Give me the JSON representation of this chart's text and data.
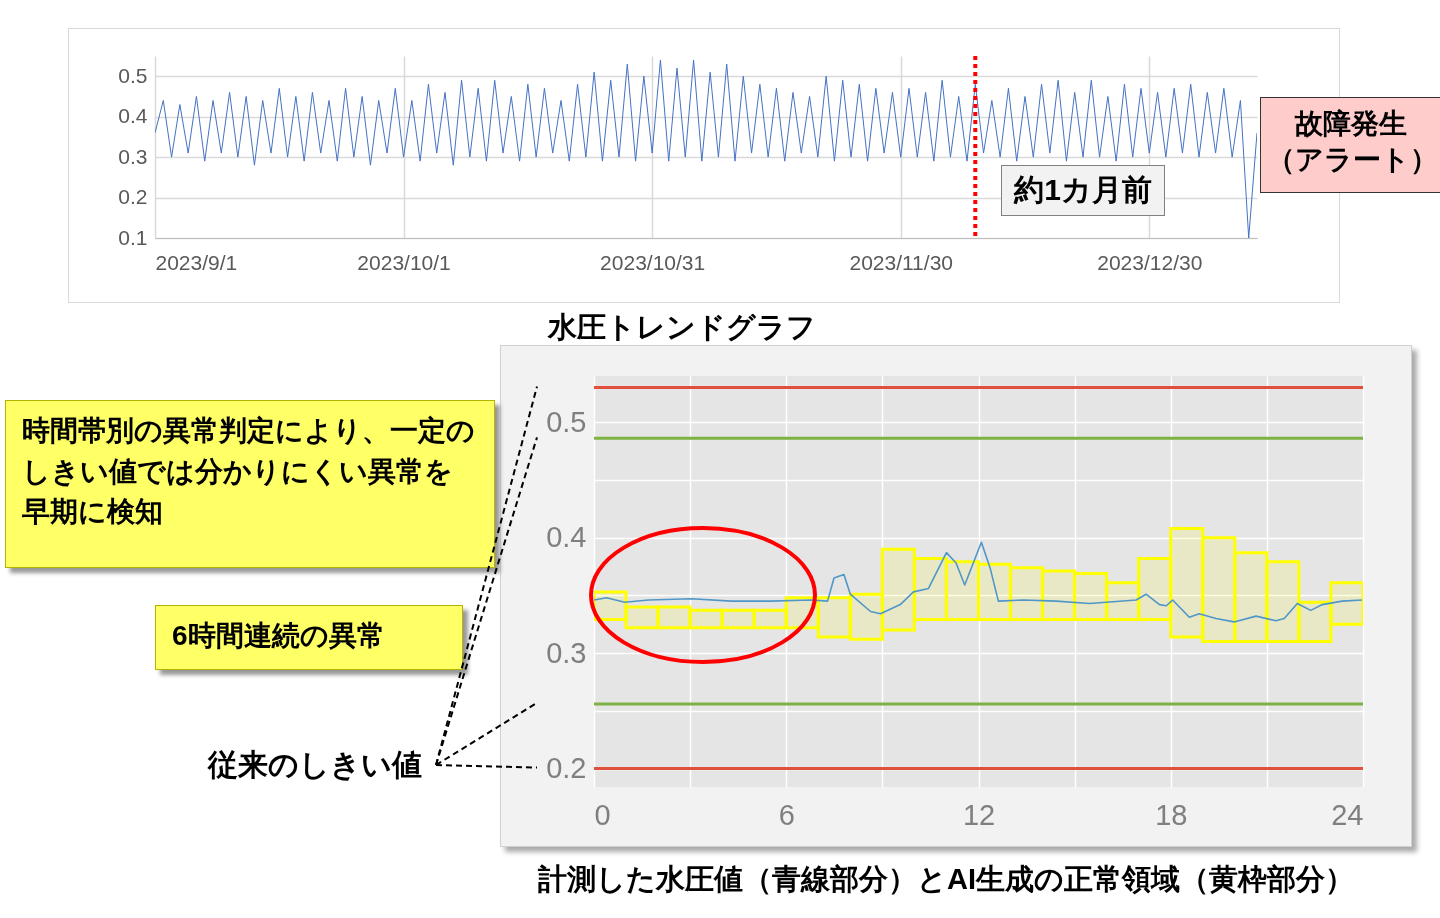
{
  "chart_data": [
    {
      "type": "line",
      "title": "水圧トレンドグラフ",
      "xlim": [
        "2023-09-01",
        "2024-01-12"
      ],
      "xticks": [
        {
          "value": "2023-09-01",
          "label": "2023/9/1"
        },
        {
          "value": "2023-10-01",
          "label": "2023/10/1"
        },
        {
          "value": "2023-10-31",
          "label": "2023/10/31"
        },
        {
          "value": "2023-11-30",
          "label": "2023/11/30"
        },
        {
          "value": "2023-12-30",
          "label": "2023/12/30"
        }
      ],
      "ylim": [
        0.1,
        0.55
      ],
      "yticks": [
        0.1,
        0.2,
        0.3,
        0.4,
        0.5
      ],
      "grid": true,
      "series": [
        {
          "color": "#4472c4",
          "x": [
            "2023-09-01",
            "2023-09-02",
            "2023-09-03",
            "2023-09-04",
            "2023-09-05",
            "2023-09-06",
            "2023-09-07",
            "2023-09-08",
            "2023-09-09",
            "2023-09-10",
            "2023-09-11",
            "2023-09-12",
            "2023-09-13",
            "2023-09-14",
            "2023-09-15",
            "2023-09-16",
            "2023-09-17",
            "2023-09-18",
            "2023-09-19",
            "2023-09-20",
            "2023-09-21",
            "2023-09-22",
            "2023-09-23",
            "2023-09-24",
            "2023-09-25",
            "2023-09-26",
            "2023-09-27",
            "2023-09-28",
            "2023-09-29",
            "2023-09-30",
            "2023-10-01",
            "2023-10-02",
            "2023-10-03",
            "2023-10-04",
            "2023-10-05",
            "2023-10-06",
            "2023-10-07",
            "2023-10-08",
            "2023-10-09",
            "2023-10-10",
            "2023-10-11",
            "2023-10-12",
            "2023-10-13",
            "2023-10-14",
            "2023-10-15",
            "2023-10-16",
            "2023-10-17",
            "2023-10-18",
            "2023-10-19",
            "2023-10-20",
            "2023-10-21",
            "2023-10-22",
            "2023-10-23",
            "2023-10-24",
            "2023-10-25",
            "2023-10-26",
            "2023-10-27",
            "2023-10-28",
            "2023-10-29",
            "2023-10-30",
            "2023-10-31",
            "2023-11-01",
            "2023-11-02",
            "2023-11-03",
            "2023-11-04",
            "2023-11-05",
            "2023-11-06",
            "2023-11-07",
            "2023-11-08",
            "2023-11-09",
            "2023-11-10",
            "2023-11-11",
            "2023-11-12",
            "2023-11-13",
            "2023-11-14",
            "2023-11-15",
            "2023-11-16",
            "2023-11-17",
            "2023-11-18",
            "2023-11-19",
            "2023-11-20",
            "2023-11-21",
            "2023-11-22",
            "2023-11-23",
            "2023-11-24",
            "2023-11-25",
            "2023-11-26",
            "2023-11-27",
            "2023-11-28",
            "2023-11-29",
            "2023-11-30",
            "2023-12-01",
            "2023-12-02",
            "2023-12-03",
            "2023-12-04",
            "2023-12-05",
            "2023-12-06",
            "2023-12-07",
            "2023-12-08",
            "2023-12-09",
            "2023-12-10",
            "2023-12-11",
            "2023-12-12",
            "2023-12-13",
            "2023-12-14",
            "2023-12-15",
            "2023-12-16",
            "2023-12-17",
            "2023-12-18",
            "2023-12-19",
            "2023-12-20",
            "2023-12-21",
            "2023-12-22",
            "2023-12-23",
            "2023-12-24",
            "2023-12-25",
            "2023-12-26",
            "2023-12-27",
            "2023-12-28",
            "2023-12-29",
            "2023-12-30",
            "2023-12-31",
            "2024-01-01",
            "2024-01-02",
            "2024-01-03",
            "2024-01-04",
            "2024-01-05",
            "2024-01-06",
            "2024-01-07",
            "2024-01-08",
            "2024-01-09",
            "2024-01-10",
            "2024-01-11",
            "2024-01-12"
          ],
          "values": [
            0.36,
            0.44,
            0.3,
            0.43,
            0.31,
            0.45,
            0.29,
            0.44,
            0.31,
            0.46,
            0.3,
            0.45,
            0.28,
            0.44,
            0.31,
            0.47,
            0.3,
            0.45,
            0.29,
            0.46,
            0.31,
            0.44,
            0.29,
            0.47,
            0.3,
            0.45,
            0.28,
            0.44,
            0.31,
            0.47,
            0.3,
            0.44,
            0.29,
            0.48,
            0.31,
            0.46,
            0.28,
            0.49,
            0.3,
            0.47,
            0.29,
            0.49,
            0.31,
            0.45,
            0.29,
            0.48,
            0.3,
            0.47,
            0.31,
            0.44,
            0.29,
            0.48,
            0.3,
            0.51,
            0.29,
            0.49,
            0.3,
            0.53,
            0.29,
            0.5,
            0.31,
            0.54,
            0.29,
            0.52,
            0.3,
            0.54,
            0.29,
            0.51,
            0.3,
            0.53,
            0.29,
            0.5,
            0.31,
            0.48,
            0.3,
            0.47,
            0.29,
            0.46,
            0.31,
            0.45,
            0.3,
            0.5,
            0.29,
            0.49,
            0.3,
            0.48,
            0.29,
            0.47,
            0.31,
            0.46,
            0.3,
            0.47,
            0.3,
            0.46,
            0.29,
            0.49,
            0.3,
            0.45,
            0.29,
            0.48,
            0.31,
            0.44,
            0.3,
            0.47,
            0.29,
            0.45,
            0.3,
            0.48,
            0.31,
            0.49,
            0.29,
            0.46,
            0.3,
            0.49,
            0.3,
            0.45,
            0.29,
            0.48,
            0.3,
            0.47,
            0.31,
            0.46,
            0.3,
            0.47,
            0.31,
            0.48,
            0.3,
            0.46,
            0.31,
            0.47,
            0.3,
            0.44,
            0.1,
            0.36
          ]
        }
      ],
      "ref_lines": [
        {
          "axis": "x",
          "value": "2023-12-09",
          "label": "約1カ月前",
          "color": "#ff0000",
          "line_style": "dotted"
        }
      ],
      "annotations": [
        {
          "text": "故障発生（アラート）",
          "x": "2024-01-11",
          "y": 0.1
        }
      ]
    },
    {
      "type": "line",
      "title": "計測した水圧値（青線部分）とAI生成の正常領域（黄枠部分）",
      "xlim": [
        0,
        24
      ],
      "xticks": [
        0,
        {
          "value": 3,
          "label": null
        },
        6,
        {
          "value": 9,
          "label": null
        },
        12,
        {
          "value": 15,
          "label": null
        },
        18,
        {
          "value": 21,
          "label": null
        },
        24
      ],
      "ylim": [
        0.184,
        0.54
      ],
      "yticks": [
        0.2,
        {
          "value": 0.25,
          "label": null
        },
        0.3,
        {
          "value": 0.35,
          "label": null
        },
        0.4,
        {
          "value": 0.45,
          "label": null
        },
        0.5
      ],
      "grid": true,
      "series": [
        {
          "type": "bar",
          "color": "#ffff00",
          "x": [
            0.5,
            1.5,
            2.5,
            3.5,
            4.5,
            5.5,
            6.5,
            7.5,
            8.5,
            9.5,
            10.5,
            11.5,
            12.5,
            13.5,
            14.5,
            15.5,
            16.5,
            17.5,
            18.5,
            19.5,
            20.5,
            21.5,
            22.5,
            23.5
          ],
          "base": [
            0.329,
            0.322,
            0.322,
            0.322,
            0.322,
            0.322,
            0.322,
            0.314,
            0.312,
            0.32,
            0.329,
            0.329,
            0.329,
            0.329,
            0.329,
            0.329,
            0.329,
            0.329,
            0.314,
            0.31,
            0.31,
            0.31,
            0.31,
            0.325
          ],
          "values": [
            0.024,
            0.018,
            0.018,
            0.015,
            0.015,
            0.015,
            0.026,
            0.034,
            0.039,
            0.07,
            0.053,
            0.05,
            0.048,
            0.045,
            0.042,
            0.04,
            0.032,
            0.053,
            0.094,
            0.09,
            0.077,
            0.069,
            0.034,
            0.036
          ]
        },
        {
          "color": "#4f97c7",
          "x": [
            0,
            0.39,
            0.96,
            1.7,
            3.04,
            4.28,
            5.52,
            6.77,
            7.29,
            7.49,
            7.8,
            8.0,
            8.63,
            8.94,
            9.56,
            9.97,
            10.44,
            11.0,
            11.3,
            11.57,
            12.09,
            12.36,
            12.62,
            13.4,
            14.43,
            15.47,
            16.92,
            17.23,
            17.65,
            17.86,
            18.06,
            18.58,
            18.89,
            19.41,
            19.98,
            20.66,
            21.28,
            21.54,
            21.95,
            22.37,
            22.73,
            23.35,
            23.97
          ],
          "values": [
            0.346,
            0.348,
            0.344,
            0.346,
            0.347,
            0.345,
            0.345,
            0.346,
            0.345,
            0.365,
            0.368,
            0.351,
            0.336,
            0.334,
            0.342,
            0.353,
            0.356,
            0.387,
            0.378,
            0.359,
            0.396,
            0.374,
            0.345,
            0.346,
            0.345,
            0.343,
            0.346,
            0.351,
            0.342,
            0.341,
            0.346,
            0.331,
            0.334,
            0.33,
            0.327,
            0.332,
            0.328,
            0.33,
            0.343,
            0.337,
            0.342,
            0.345,
            0.346
          ]
        }
      ],
      "ref_lines": [
        {
          "axis": "y",
          "value": 0.53,
          "color": "#e0503c",
          "line_style": "solid"
        },
        {
          "axis": "y",
          "value": 0.486,
          "color": "#7cb342",
          "line_style": "solid"
        },
        {
          "axis": "y",
          "value": 0.256,
          "color": "#7cb342",
          "line_style": "solid"
        },
        {
          "axis": "y",
          "value": 0.2,
          "color": "#e0503c",
          "line_style": "solid"
        }
      ],
      "annotations": [
        "時間帯別の異常判定により、一定のしきい値では分かりにくい異常を早期に検知",
        "6時間連続の異常",
        "従来のしきい値"
      ]
    }
  ]
}
